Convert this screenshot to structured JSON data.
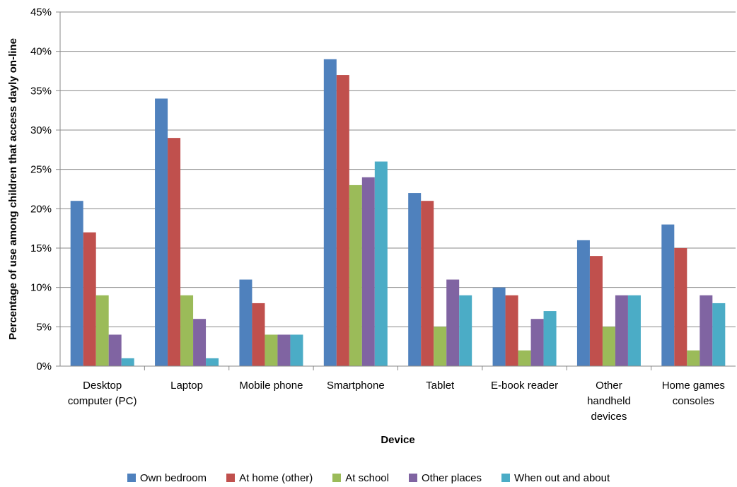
{
  "chart_data": {
    "type": "bar",
    "xlabel": "Device",
    "ylabel": "Percentage of use among children that access dayly on-line",
    "ylim": [
      0,
      45
    ],
    "ytick_step": 5,
    "ytick_suffix": "%",
    "grid": true,
    "legend_position": "bottom",
    "categories": [
      [
        "Desktop",
        "computer (PC)"
      ],
      [
        "Laptop"
      ],
      [
        "Mobile phone"
      ],
      [
        "Smartphone"
      ],
      [
        "Tablet"
      ],
      [
        "E-book reader"
      ],
      [
        "Other",
        "handheld",
        "devices"
      ],
      [
        "Home games",
        "consoles"
      ]
    ],
    "series": [
      {
        "name": "Own bedroom",
        "color": "#4F81BD",
        "values": [
          21,
          34,
          11,
          39,
          22,
          10,
          16,
          18
        ]
      },
      {
        "name": "At home (other)",
        "color": "#C0504D",
        "values": [
          17,
          29,
          8,
          37,
          21,
          9,
          14,
          15
        ]
      },
      {
        "name": "At school",
        "color": "#9BBB59",
        "values": [
          9,
          9,
          4,
          23,
          5,
          2,
          5,
          2
        ]
      },
      {
        "name": "Other places",
        "color": "#8064A2",
        "values": [
          4,
          6,
          4,
          24,
          11,
          6,
          9,
          9
        ]
      },
      {
        "name": "When out and about",
        "color": "#4BACC6",
        "values": [
          1,
          1,
          4,
          26,
          9,
          7,
          9,
          8
        ]
      }
    ]
  }
}
